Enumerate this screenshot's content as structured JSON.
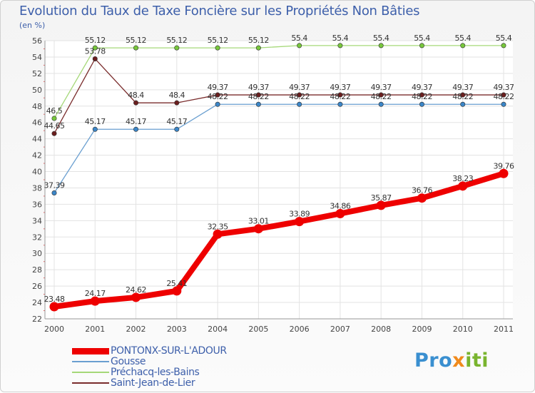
{
  "chart_data": {
    "type": "line",
    "title": "Evolution du Taux de Taxe Foncière sur les Propriétés Non Bâties",
    "ylabel": "(en %)",
    "xlabel": "",
    "ylim": [
      22,
      56
    ],
    "y_ticks": [
      22,
      24,
      26,
      28,
      30,
      32,
      34,
      36,
      38,
      40,
      42,
      44,
      46,
      48,
      50,
      52,
      54,
      56
    ],
    "categories": [
      "2000",
      "2001",
      "2002",
      "2003",
      "2004",
      "2005",
      "2006",
      "2007",
      "2008",
      "2009",
      "2010",
      "2011"
    ],
    "series": [
      {
        "name": "PONTONX-SUR-L'ADOUR",
        "color": "#ee0000",
        "values": [
          23.48,
          24.17,
          24.62,
          25.41,
          32.35,
          33.01,
          33.89,
          34.86,
          35.87,
          36.76,
          38.23,
          39.76
        ],
        "labels": [
          "23.48",
          "24.17",
          "24.62",
          "25.41",
          "32.35",
          "33.01",
          "33.89",
          "34.86",
          "35.87",
          "36.76",
          "38.23",
          "39.76"
        ]
      },
      {
        "name": "Gousse",
        "color": "#6a9fd0",
        "marker": "#3b86c8",
        "values": [
          37.39,
          45.17,
          45.17,
          45.17,
          48.22,
          48.22,
          48.22,
          48.22,
          48.22,
          48.22,
          48.22,
          48.22
        ],
        "labels": [
          "37.39",
          "45.17",
          "45.17",
          "45.17",
          "48.22",
          "48.22",
          "48.22",
          "48.22",
          "48.22",
          "48.22",
          "48.22",
          "48.22"
        ]
      },
      {
        "name": "Préchacq-les-Bains",
        "color": "#a5d878",
        "marker": "#78c83c",
        "values": [
          46.5,
          55.12,
          55.12,
          55.12,
          55.12,
          55.12,
          55.4,
          55.4,
          55.4,
          55.4,
          55.4,
          55.4
        ],
        "labels": [
          "46.5",
          "55.12",
          "55.12",
          "55.12",
          "55.12",
          "55.12",
          "55.4",
          "55.4",
          "55.4",
          "55.4",
          "55.4",
          "55.4"
        ]
      },
      {
        "name": "Saint-Jean-de-Lier",
        "color": "#7a2c2c",
        "marker": "#6a1e1e",
        "values": [
          44.65,
          53.78,
          48.4,
          48.4,
          49.37,
          49.37,
          49.37,
          49.37,
          49.37,
          49.37,
          49.37,
          49.37
        ],
        "labels": [
          "44.65",
          "53.78",
          "48.4",
          "48.4",
          "49.37",
          "49.37",
          "49.37",
          "49.37",
          "49.37",
          "49.37",
          "49.37",
          "49.37"
        ]
      }
    ],
    "legend_position": "bottom-left"
  },
  "brand": {
    "part1": "Pro",
    "part2": "x",
    "part3": "iti"
  }
}
